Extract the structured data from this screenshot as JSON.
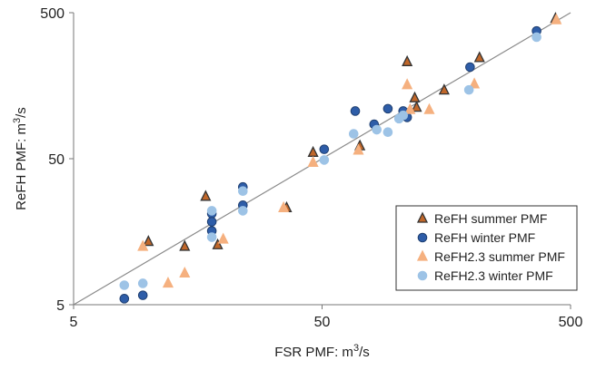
{
  "chart_data": {
    "type": "scatter",
    "xlabel": "FSR PMF: m3/s",
    "xlabel_parts": {
      "text": "FSR PMF: m",
      "sup": "3",
      "suffix": "/s"
    },
    "ylabel": "ReFH PMF: m3/s",
    "ylabel_parts": {
      "text": "ReFH PMF: m",
      "sup": "3",
      "suffix": "/s"
    },
    "x_scale": "log",
    "y_scale": "log",
    "xlim": [
      5,
      500
    ],
    "ylim": [
      5,
      500
    ],
    "x_ticks": [
      5,
      50,
      500
    ],
    "y_ticks": [
      5,
      50,
      500
    ],
    "x_tick_labels": [
      "5",
      "50",
      "500"
    ],
    "y_tick_labels": [
      "5",
      "50",
      "500"
    ],
    "grid": false,
    "reference_line": {
      "x": [
        5,
        500
      ],
      "y": [
        5,
        500
      ],
      "color": "#8a8a8a"
    },
    "legend_position": "bottom-right",
    "series": [
      {
        "name": "ReFH summer PMF",
        "marker": "triangle",
        "fill": "#c0672a",
        "stroke": "#333333",
        "points": [
          [
            17,
            27.5
          ],
          [
            10,
            13.5
          ],
          [
            14,
            12.5
          ],
          [
            19,
            12.8
          ],
          [
            36,
            23
          ],
          [
            46,
            55
          ],
          [
            71,
            61
          ],
          [
            110,
            230
          ],
          [
            120,
            112
          ],
          [
            118,
            130
          ],
          [
            155,
            147
          ],
          [
            215,
            245
          ],
          [
            435,
            455
          ]
        ]
      },
      {
        "name": "ReFH winter PMF",
        "marker": "circle",
        "fill": "#2e5da8",
        "stroke": "#1f3f70",
        "points": [
          [
            8,
            5.5
          ],
          [
            9.5,
            5.8
          ],
          [
            18,
            21
          ],
          [
            18,
            18.5
          ],
          [
            18,
            16
          ],
          [
            24,
            32
          ],
          [
            24,
            24
          ],
          [
            51,
            58
          ],
          [
            68,
            106
          ],
          [
            81,
            86
          ],
          [
            92,
            110
          ],
          [
            106,
            106
          ],
          [
            110,
            96
          ],
          [
            197,
            212
          ],
          [
            365,
            375
          ]
        ]
      },
      {
        "name": "ReFH2.3 summer PMF",
        "marker": "triangle",
        "fill": "#f5b07f",
        "stroke": "#f5b07f",
        "points": [
          [
            9.5,
            12.5
          ],
          [
            12,
            7
          ],
          [
            14,
            8.2
          ],
          [
            20,
            14
          ],
          [
            35,
            23
          ],
          [
            46,
            47
          ],
          [
            70,
            57
          ],
          [
            110,
            160
          ],
          [
            113,
            108
          ],
          [
            135,
            108
          ],
          [
            205,
            162
          ],
          [
            438,
            445
          ]
        ]
      },
      {
        "name": "ReFH2.3 winter PMF",
        "marker": "circle",
        "fill": "#9dc3e6",
        "stroke": "#9dc3e6",
        "points": [
          [
            8,
            6.8
          ],
          [
            9.5,
            7
          ],
          [
            18,
            22
          ],
          [
            18,
            14.5
          ],
          [
            24,
            30
          ],
          [
            24,
            22
          ],
          [
            51,
            49
          ],
          [
            67,
            74
          ],
          [
            83,
            79
          ],
          [
            92,
            76
          ],
          [
            102,
            94
          ],
          [
            106,
            99
          ],
          [
            195,
            148
          ],
          [
            365,
            340
          ]
        ]
      }
    ]
  }
}
